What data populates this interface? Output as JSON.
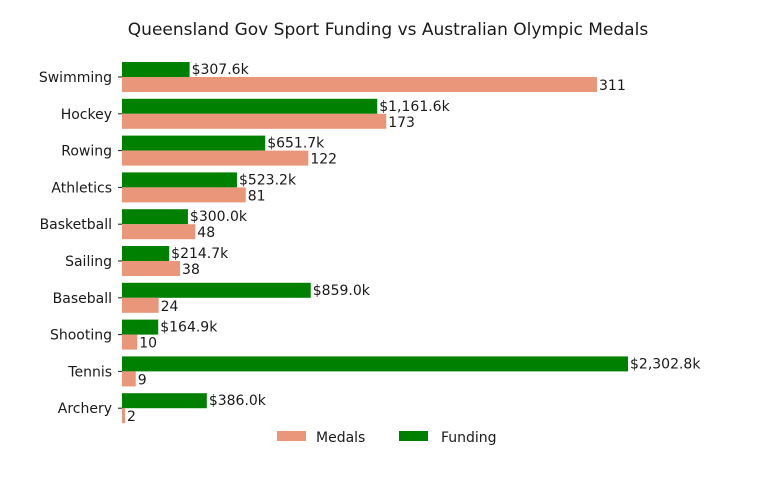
{
  "chart_data": {
    "type": "bar",
    "orientation": "horizontal",
    "title": "Queensland Gov Sport Funding vs Australian Olympic Medals",
    "xlabel": "",
    "ylabel": "",
    "grid": false,
    "legend_position": "bottom-center",
    "categories": [
      "Swimming",
      "Hockey",
      "Rowing",
      "Athletics",
      "Basketball",
      "Sailing",
      "Baseball",
      "Shooting",
      "Tennis",
      "Archery"
    ],
    "series": [
      {
        "name": "Medals",
        "color": "#e9967a",
        "values": [
          311,
          173,
          122,
          81,
          48,
          38,
          24,
          10,
          9,
          2
        ],
        "labels": [
          "311",
          "173",
          "122",
          "81",
          "48",
          "38",
          "24",
          "10",
          "9",
          "2"
        ]
      },
      {
        "name": "Funding",
        "color": "#008000",
        "values": [
          307.6,
          1161.6,
          651.7,
          523.2,
          300.0,
          214.7,
          859.0,
          164.9,
          2302.8,
          386.0
        ],
        "labels": [
          "$307.6k",
          "$1,161.6k",
          "$651.7k",
          "$523.2k",
          "$300.0k",
          "$214.7k",
          "$859.0k",
          "$164.9k",
          "$2,302.8k",
          "$386.0k"
        ]
      }
    ]
  }
}
